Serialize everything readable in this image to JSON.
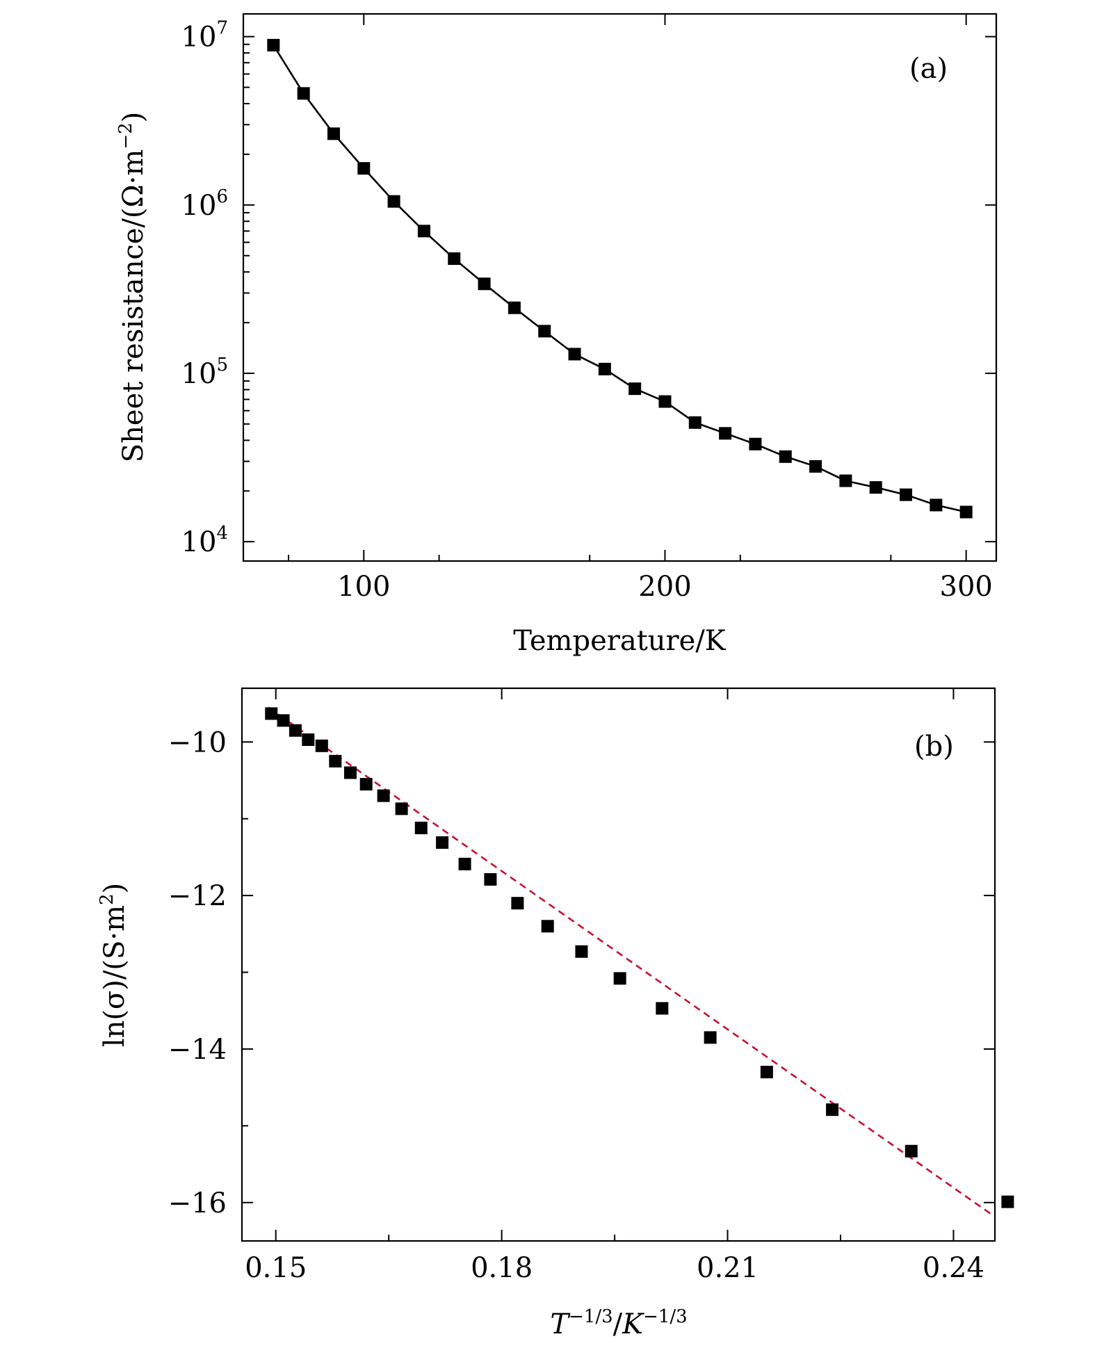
{
  "chart_data": [
    {
      "type": "line",
      "panel_label": "(a)",
      "xlabel": "Temperature/K",
      "ylabel": "Sheet resistance/(Ω·m",
      "ylabel_exp": "−2",
      "ylabel_close": ")",
      "xlim": [
        60,
        310
      ],
      "ylim_log10": [
        3.885,
        7.135
      ],
      "yscale": "log",
      "x_ticks": [
        100,
        200,
        300
      ],
      "x_tick_labels": [
        "100",
        "200",
        "300"
      ],
      "y_tick_base": "10",
      "y_ticks_exp": [
        "4",
        "5",
        "6",
        "7"
      ],
      "series": [
        {
          "name": "Sheet resistance",
          "marker": "square",
          "color": "#000000",
          "x": [
            70,
            80,
            90,
            100,
            110,
            120,
            130,
            140,
            150,
            160,
            170,
            180,
            190,
            200,
            210,
            220,
            230,
            240,
            250,
            260,
            270,
            280,
            290,
            300
          ],
          "y": [
            8900000,
            4600000,
            2650000,
            1650000,
            1050000,
            700000,
            480000,
            340000,
            245000,
            178000,
            130000,
            106000,
            81000,
            68000,
            51000,
            44000,
            38000,
            32000,
            28000,
            23000,
            21000,
            19000,
            16500,
            15000
          ]
        }
      ]
    },
    {
      "type": "scatter",
      "panel_label": "(b)",
      "xlabel_T": "T",
      "xlabel_T_exp": "−1/3",
      "xlabel_sep": "/",
      "xlabel_K": "K",
      "xlabel_K_exp": "−1/3",
      "ylabel": "ln(σ)/(S·m",
      "ylabel_exp": "2",
      "ylabel_close": ")",
      "xlim": [
        0.1455,
        0.2455
      ],
      "ylim": [
        -16.5,
        -9.3
      ],
      "x_ticks": [
        0.15,
        0.18,
        0.21,
        0.24
      ],
      "x_tick_labels": [
        "0.15",
        "0.18",
        "0.21",
        "0.24"
      ],
      "y_ticks": [
        -10,
        -12,
        -14,
        -16
      ],
      "y_tick_labels": [
        "−10",
        "−12",
        "−14",
        "−16"
      ],
      "series": [
        {
          "name": "Data",
          "marker": "square",
          "color": "#000000",
          "x": [
            0.1494,
            0.151,
            0.1526,
            0.1543,
            0.1561,
            0.1579,
            0.1599,
            0.162,
            0.1643,
            0.1667,
            0.1693,
            0.1721,
            0.1751,
            0.1785,
            0.1821,
            0.1861,
            0.1906,
            0.1957,
            0.2013,
            0.2077,
            0.2152,
            0.2239,
            0.2344,
            0.2472
          ],
          "y": [
            -9.63,
            -9.72,
            -9.85,
            -9.97,
            -10.05,
            -10.25,
            -10.4,
            -10.55,
            -10.7,
            -10.87,
            -11.12,
            -11.31,
            -11.59,
            -11.79,
            -12.1,
            -12.4,
            -12.73,
            -13.08,
            -13.47,
            -13.85,
            -14.3,
            -14.79,
            -15.33,
            -15.99
          ]
        },
        {
          "name": "Linear fit",
          "line_style": "dashed",
          "color": "#c8102e",
          "x": [
            0.149,
            0.245
          ],
          "y": [
            -9.55,
            -16.15
          ]
        }
      ]
    }
  ]
}
